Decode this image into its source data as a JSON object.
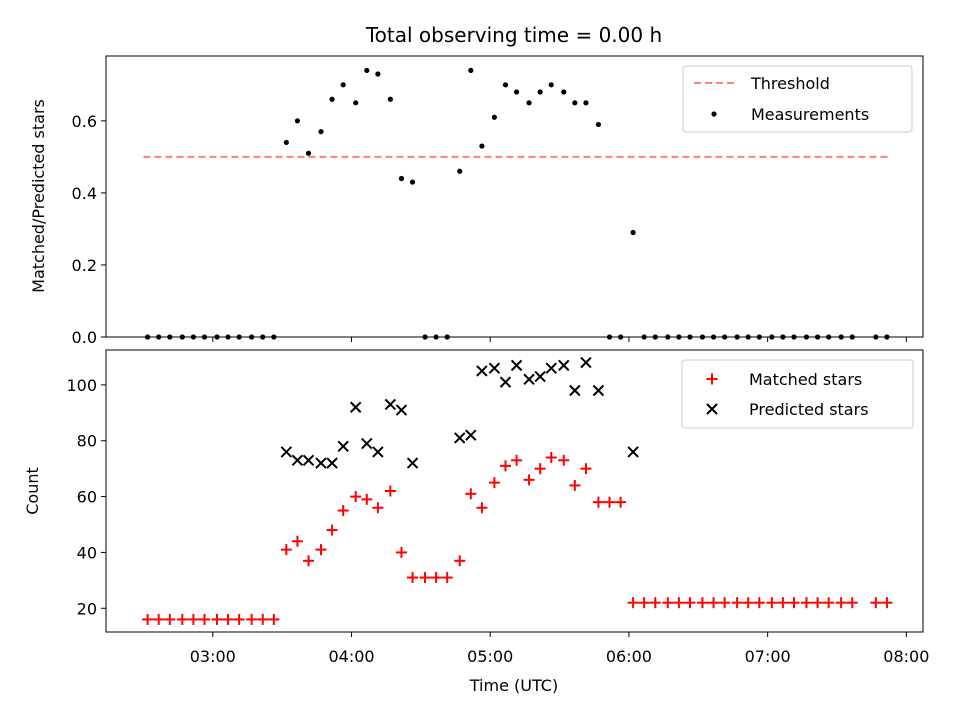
{
  "figure": {
    "title": "Total observing time = 0.00 h",
    "xlabel": "Time (UTC)",
    "x_tick_labels": [
      "03:00",
      "04:00",
      "05:00",
      "06:00",
      "07:00",
      "08:00"
    ],
    "x_tick_values": [
      3.0,
      4.0,
      5.0,
      6.0,
      7.0,
      8.0
    ],
    "xlim": [
      2.23,
      8.12
    ]
  },
  "chart_data": [
    {
      "type": "scatter",
      "ylabel": "Matched/Predicted stars",
      "ylim": [
        0,
        0.78
      ],
      "y_tick_labels": [
        "0.0",
        "0.2",
        "0.4",
        "0.6"
      ],
      "y_tick_values": [
        0,
        0.2,
        0.4,
        0.6
      ],
      "legend": {
        "placement": "upper right",
        "threshold_label": "Threshold",
        "measurements_label": "Measurements"
      },
      "threshold": {
        "value": 0.5,
        "x_range": [
          2.5,
          7.87
        ],
        "color": "#ff7f7f"
      },
      "measurements": {
        "color": "#000000",
        "x": [
          2.53,
          2.61,
          2.69,
          2.78,
          2.86,
          2.94,
          3.03,
          3.11,
          3.19,
          3.28,
          3.36,
          3.44,
          3.53,
          3.61,
          3.69,
          3.78,
          3.86,
          3.94,
          4.03,
          4.11,
          4.19,
          4.28,
          4.36,
          4.44,
          4.53,
          4.61,
          4.69,
          4.78,
          4.86,
          4.94,
          5.03,
          5.11,
          5.19,
          5.28,
          5.36,
          5.44,
          5.53,
          5.61,
          5.69,
          5.78,
          5.86,
          5.94,
          6.03,
          6.11,
          6.19,
          6.28,
          6.36,
          6.44,
          6.53,
          6.61,
          6.69,
          6.78,
          6.86,
          6.94,
          7.03,
          7.11,
          7.19,
          7.28,
          7.36,
          7.44,
          7.53,
          7.61,
          7.78,
          7.86
        ],
        "y": [
          0,
          0,
          0,
          0,
          0,
          0,
          0,
          0,
          0,
          0,
          0,
          0,
          0.54,
          0.6,
          0.51,
          0.57,
          0.66,
          0.7,
          0.65,
          0.74,
          0.73,
          0.66,
          0.44,
          0.43,
          0,
          0,
          0,
          0.46,
          0.74,
          0.53,
          0.61,
          0.7,
          0.68,
          0.65,
          0.68,
          0.7,
          0.68,
          0.65,
          0.65,
          0.59,
          0,
          0,
          0.29,
          0,
          0,
          0,
          0,
          0,
          0,
          0,
          0,
          0,
          0,
          0,
          0,
          0,
          0,
          0,
          0,
          0,
          0,
          0,
          0,
          0
        ]
      }
    },
    {
      "type": "scatter",
      "ylabel": "Count",
      "ylim": [
        11.5,
        112.5
      ],
      "y_tick_labels": [
        "20",
        "40",
        "60",
        "80",
        "100"
      ],
      "y_tick_values": [
        20,
        40,
        60,
        80,
        100
      ],
      "legend": {
        "placement": "upper right"
      },
      "series": [
        {
          "name": "Matched stars",
          "marker": "+",
          "color": "#ff0000",
          "x": [
            2.53,
            2.61,
            2.69,
            2.78,
            2.86,
            2.94,
            3.03,
            3.11,
            3.19,
            3.28,
            3.36,
            3.44,
            3.53,
            3.61,
            3.69,
            3.78,
            3.86,
            3.94,
            4.03,
            4.11,
            4.19,
            4.28,
            4.36,
            4.44,
            4.53,
            4.61,
            4.69,
            4.78,
            4.86,
            4.94,
            5.03,
            5.11,
            5.19,
            5.28,
            5.36,
            5.44,
            5.53,
            5.61,
            5.69,
            5.78,
            5.86,
            5.94,
            6.03,
            6.11,
            6.19,
            6.28,
            6.36,
            6.44,
            6.53,
            6.61,
            6.69,
            6.78,
            6.86,
            6.94,
            7.03,
            7.11,
            7.19,
            7.28,
            7.36,
            7.44,
            7.53,
            7.61,
            7.78,
            7.86
          ],
          "y": [
            16,
            16,
            16,
            16,
            16,
            16,
            16,
            16,
            16,
            16,
            16,
            16,
            41,
            44,
            37,
            41,
            48,
            55,
            60,
            59,
            56,
            62,
            40,
            31,
            31,
            31,
            31,
            37,
            61,
            56,
            65,
            71,
            73,
            66,
            70,
            74,
            73,
            64,
            70,
            58,
            58,
            58,
            22,
            22,
            22,
            22,
            22,
            22,
            22,
            22,
            22,
            22,
            22,
            22,
            22,
            22,
            22,
            22,
            22,
            22,
            22,
            22,
            22,
            22
          ]
        },
        {
          "name": "Predicted stars",
          "marker": "x",
          "color": "#000000",
          "x": [
            3.53,
            3.61,
            3.69,
            3.78,
            3.86,
            3.94,
            4.03,
            4.11,
            4.19,
            4.28,
            4.36,
            4.44,
            4.78,
            4.86,
            4.94,
            5.03,
            5.11,
            5.19,
            5.28,
            5.36,
            5.44,
            5.53,
            5.61,
            5.69,
            5.78,
            6.03
          ],
          "y": [
            76,
            73,
            73,
            72,
            72,
            78,
            92,
            79,
            76,
            93,
            91,
            72,
            81,
            82,
            105,
            106,
            101,
            107,
            102,
            103,
            106,
            107,
            98,
            108,
            98,
            76
          ]
        }
      ]
    }
  ]
}
